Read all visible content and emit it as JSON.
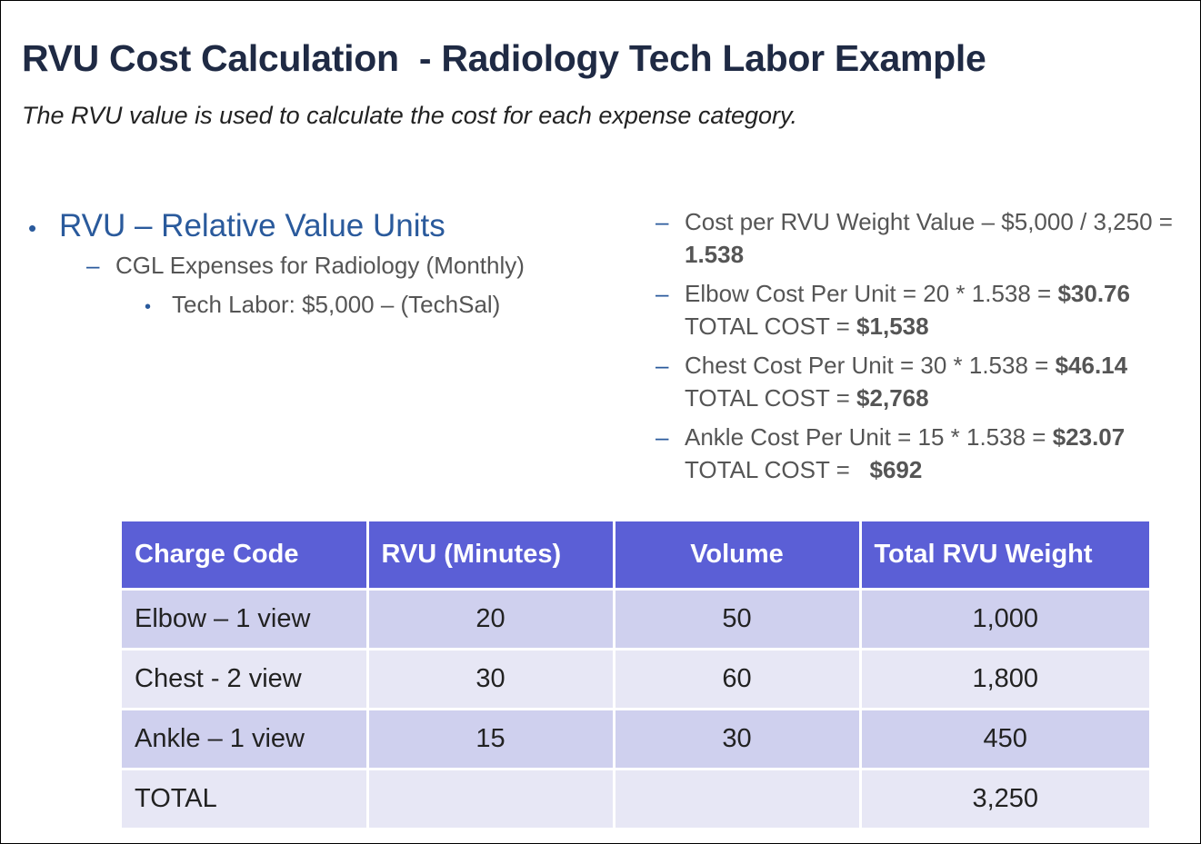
{
  "title": "RVU Cost Calculation  - Radiology Tech Labor Example",
  "subtitle": "The RVU value is used to calculate the cost for each expense category.",
  "left": {
    "bullet": "RVU – Relative Value Units",
    "sub": "CGL Expenses for Radiology (Monthly)",
    "subsub": "Tech Labor: $5,000 – (TechSal)"
  },
  "right": [
    {
      "line1": "Cost per RVU Weight Value – $5,000 / 3,250 = ",
      "bold1": "1.538",
      "line2": "",
      "bold2": ""
    },
    {
      "line1": "Elbow Cost Per Unit = 20 * 1.538 = ",
      "bold1": "$30.76",
      "line2": "TOTAL COST = ",
      "bold2": "$1,538"
    },
    {
      "line1": "Chest Cost Per Unit = 30 * 1.538 = ",
      "bold1": "$46.14",
      "line2": "TOTAL COST = ",
      "bold2": "$2,768"
    },
    {
      "line1": "Ankle Cost Per Unit = 15 * 1.538 = ",
      "bold1": "$23.07",
      "line2": "TOTAL COST = ",
      "bold2": "$692"
    }
  ],
  "table": {
    "headers": [
      "Charge Code",
      "RVU (Minutes)",
      "Volume",
      "Total RVU Weight"
    ],
    "rows": [
      [
        "Elbow – 1 view",
        "20",
        "50",
        "1,000"
      ],
      [
        "Chest  - 2 view",
        "30",
        "60",
        "1,800"
      ],
      [
        "Ankle – 1 view",
        "15",
        "30",
        "450"
      ],
      [
        "TOTAL",
        "",
        "",
        "3,250"
      ]
    ]
  },
  "colors": {
    "title": "#1f2a44",
    "accent": "#2a5a9c",
    "header": "#5b5fd6",
    "row_dark": "#cfd0ee",
    "row_light": "#e7e7f5"
  }
}
